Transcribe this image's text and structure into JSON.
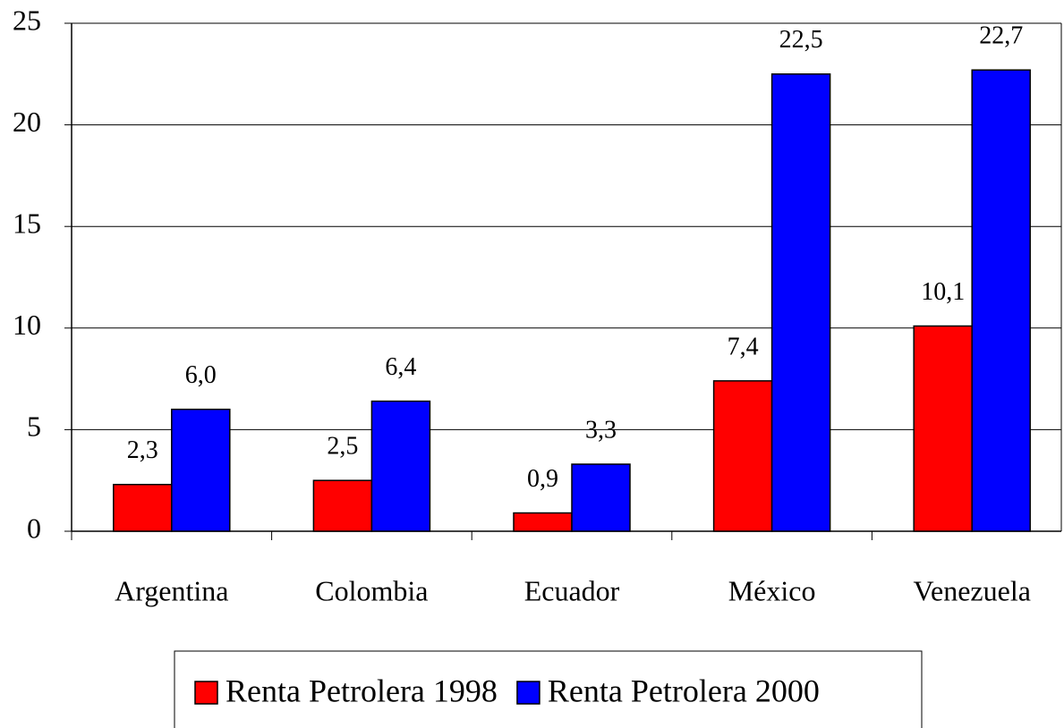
{
  "chart_data": {
    "type": "bar",
    "categories": [
      "Argentina",
      "Colombia",
      "Ecuador",
      "México",
      "Venezuela"
    ],
    "series": [
      {
        "name": "Renta Petrolera 1998",
        "color": "#ff0000",
        "values": [
          2.3,
          2.5,
          0.9,
          7.4,
          10.1
        ],
        "value_labels": [
          "2,3",
          "2,5",
          "0,9",
          "7,4",
          "10,1"
        ]
      },
      {
        "name": "Renta Petrolera 2000",
        "color": "#0000ff",
        "values": [
          6.0,
          6.4,
          3.3,
          22.5,
          22.7
        ],
        "value_labels": [
          "6,0",
          "6,4",
          "3,3",
          "22,5",
          "22,7"
        ]
      }
    ],
    "ylim": [
      0,
      25
    ],
    "yticks": [
      0,
      5,
      10,
      15,
      20,
      25
    ],
    "grid": true,
    "legend": "bottom"
  }
}
